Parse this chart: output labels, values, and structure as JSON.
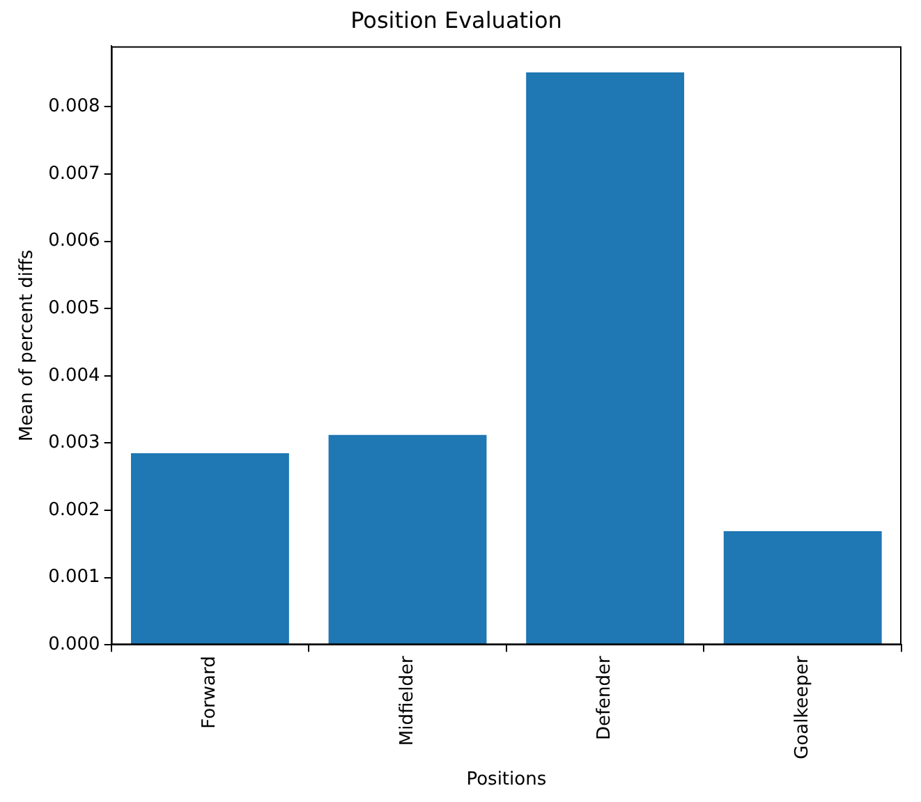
{
  "chart_data": {
    "type": "bar",
    "title": "Position Evaluation",
    "xlabel": "Positions",
    "ylabel": "Mean of percent diffs",
    "categories": [
      "Forward",
      "Midfielder",
      "Defender",
      "Goalkeeper"
    ],
    "values": [
      0.00285,
      0.00312,
      0.00851,
      0.00169
    ],
    "color": "#1f77b4",
    "ylim": [
      0,
      0.0089
    ],
    "yticks": [
      {
        "value": 0,
        "label": "0.000"
      },
      {
        "value": 0.001,
        "label": "0.001"
      },
      {
        "value": 0.002,
        "label": "0.002"
      },
      {
        "value": 0.003,
        "label": "0.003"
      },
      {
        "value": 0.004,
        "label": "0.004"
      },
      {
        "value": 0.005,
        "label": "0.005"
      },
      {
        "value": 0.006,
        "label": "0.006"
      },
      {
        "value": 0.007,
        "label": "0.007"
      },
      {
        "value": 0.008,
        "label": "0.008"
      }
    ],
    "grid": false,
    "legend": false
  }
}
